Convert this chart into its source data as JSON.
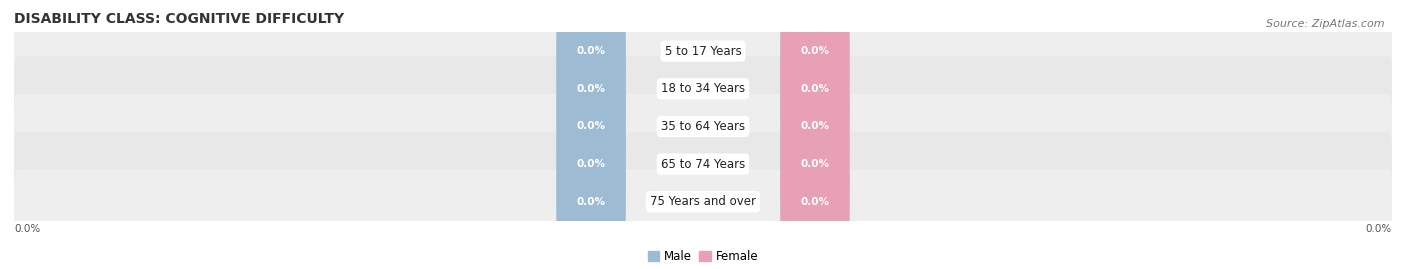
{
  "title": "DISABILITY CLASS: COGNITIVE DIFFICULTY",
  "source_text": "Source: ZipAtlas.com",
  "categories": [
    "5 to 17 Years",
    "18 to 34 Years",
    "35 to 64 Years",
    "65 to 74 Years",
    "75 Years and over"
  ],
  "male_values": [
    0.0,
    0.0,
    0.0,
    0.0,
    0.0
  ],
  "female_values": [
    0.0,
    0.0,
    0.0,
    0.0,
    0.0
  ],
  "male_color": "#9dbcd4",
  "female_color": "#e8a0b4",
  "row_colors": [
    "#eeeeee",
    "#e8e8e8",
    "#eeeeee",
    "#e8e8e8",
    "#eeeeee"
  ],
  "label_color": "#ffffff",
  "axis_label_left": "0.0%",
  "axis_label_right": "0.0%",
  "legend_male": "Male",
  "legend_female": "Female",
  "title_fontsize": 10,
  "source_fontsize": 8,
  "bar_label_fontsize": 7.5,
  "category_fontsize": 8.5
}
